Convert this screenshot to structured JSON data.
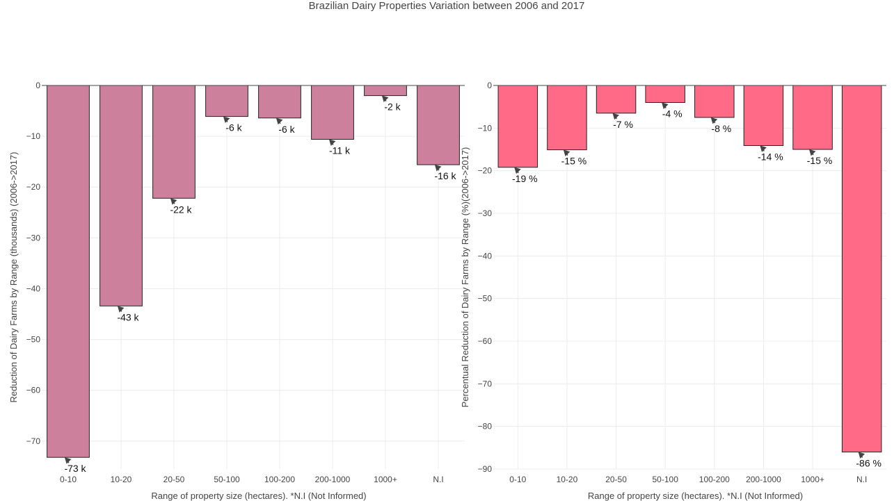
{
  "title": "Brazilian Dairy Properties Variation between 2006 and 2017",
  "chart_data": [
    {
      "type": "bar",
      "categories": [
        "0-10",
        "10-20",
        "20-50",
        "50-100",
        "100-200",
        "200-1000",
        "1000+",
        "N.I"
      ],
      "values": [
        -73.2,
        -43.4,
        -22.2,
        -6.1,
        -6.4,
        -10.6,
        -2.0,
        -15.6
      ],
      "data_labels": [
        "-73 k",
        "-43 k",
        "-22 k",
        "-6 k",
        "-6 k",
        "-11 k",
        "-2 k",
        "-16 k"
      ],
      "xlabel": "Range of property size (hectares). *N.I (Not Informed)",
      "ylabel": "Reduction of Dairy Farms by Range (thousands) (2006->2017)",
      "ylim": [
        -75.5,
        0
      ],
      "yticks": [
        0,
        -10,
        -20,
        -30,
        -40,
        -50,
        -60,
        -70
      ],
      "ytick_labels": [
        "0",
        "−10",
        "−20",
        "−30",
        "−40",
        "−50",
        "−60",
        "−70"
      ],
      "grid": true,
      "color": "#cc809b"
    },
    {
      "type": "bar",
      "categories": [
        "0-10",
        "10-20",
        "20-50",
        "50-100",
        "100-200",
        "200-1000",
        "1000+",
        "N.I"
      ],
      "values": [
        -19.2,
        -15.1,
        -6.5,
        -4.0,
        -7.5,
        -14.1,
        -15.0,
        -86.0
      ],
      "data_labels": [
        "-19 %",
        "-15 %",
        "-7 %",
        "-4 %",
        "-8 %",
        "-14 %",
        "-15 %",
        "-86 %"
      ],
      "xlabel": "Range of property size (hectares). *N.I (Not Informed)",
      "ylabel": "Percentual Reduction of Dairy Farms by Range (%)(2006->2017)",
      "ylim": [
        -90,
        0
      ],
      "yticks": [
        0,
        -10,
        -20,
        -30,
        -40,
        -50,
        -60,
        -70,
        -80,
        -90
      ],
      "ytick_labels": [
        "0",
        "−10",
        "−20",
        "−30",
        "−40",
        "−50",
        "−60",
        "−70",
        "−80",
        "−90"
      ],
      "grid": true,
      "color": "#ff6b87"
    }
  ]
}
